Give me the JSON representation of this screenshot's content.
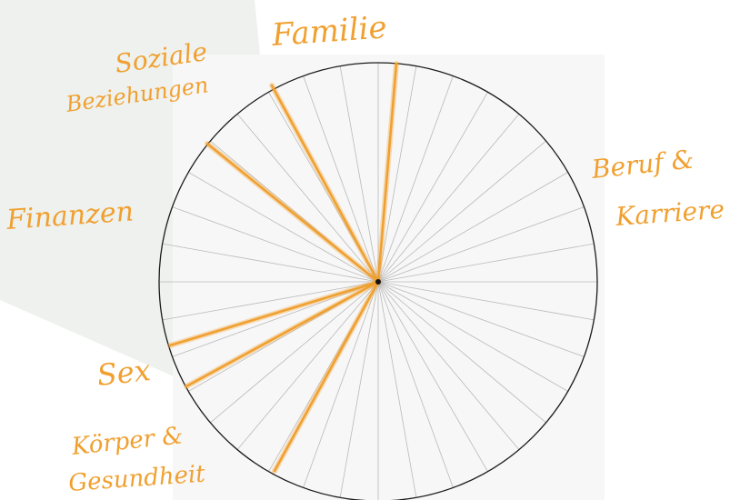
{
  "diagram": {
    "segment_count": 36,
    "colors": {
      "highlight": "#f0a030",
      "outline": "#1a1a1a",
      "spokes": "#b9b9b9",
      "shadow": "#eef1ee",
      "plate": "#f7f7f7"
    },
    "labels": {
      "familie": "Familie",
      "soziale": "Soziale",
      "beziehungen": "Beziehungen",
      "beruf": "Beruf &",
      "karriere": "Karriere",
      "finanzen": "Finanzen",
      "sex": "Sex",
      "koerper": "Körper &",
      "gesundheit": "Gesundheit"
    },
    "highlighted_spokes": [
      "familie",
      "soziale-beziehungen",
      "finanzen",
      "sex-upper",
      "sex-lower",
      "koerper-gesundheit"
    ]
  }
}
